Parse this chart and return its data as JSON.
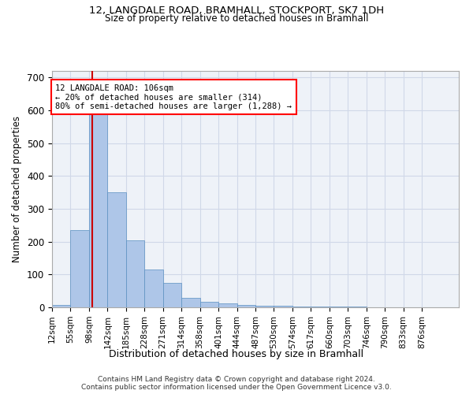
{
  "title1": "12, LANGDALE ROAD, BRAMHALL, STOCKPORT, SK7 1DH",
  "title2": "Size of property relative to detached houses in Bramhall",
  "xlabel": "Distribution of detached houses by size in Bramhall",
  "ylabel": "Number of detached properties",
  "footnote1": "Contains HM Land Registry data © Crown copyright and database right 2024.",
  "footnote2": "Contains public sector information licensed under the Open Government Licence v3.0.",
  "annotation_line1": "12 LANGDALE ROAD: 106sqm",
  "annotation_line2": "← 20% of detached houses are smaller (314)",
  "annotation_line3": "80% of semi-detached houses are larger (1,288) →",
  "bar_color": "#aec6e8",
  "bar_edge_color": "#5a8fc0",
  "grid_color": "#d0d8e8",
  "background_color": "#eef2f8",
  "vline_color": "#cc0000",
  "vline_position": 106,
  "bin_edges": [
    12,
    55,
    98,
    141,
    184,
    227,
    270,
    313,
    356,
    399,
    442,
    485,
    528,
    571,
    614,
    657,
    700,
    743,
    786,
    829,
    872,
    915
  ],
  "bin_labels": [
    "12sqm",
    "55sqm",
    "98sqm",
    "142sqm",
    "185sqm",
    "228sqm",
    "271sqm",
    "314sqm",
    "358sqm",
    "401sqm",
    "444sqm",
    "487sqm",
    "530sqm",
    "574sqm",
    "617sqm",
    "660sqm",
    "703sqm",
    "746sqm",
    "790sqm",
    "833sqm",
    "876sqm"
  ],
  "counts": [
    8,
    235,
    590,
    350,
    205,
    115,
    75,
    28,
    16,
    12,
    8,
    6,
    5,
    3,
    3,
    3,
    2,
    1,
    1,
    1,
    1
  ],
  "ylim": [
    0,
    720
  ],
  "yticks": [
    0,
    100,
    200,
    300,
    400,
    500,
    600,
    700
  ]
}
